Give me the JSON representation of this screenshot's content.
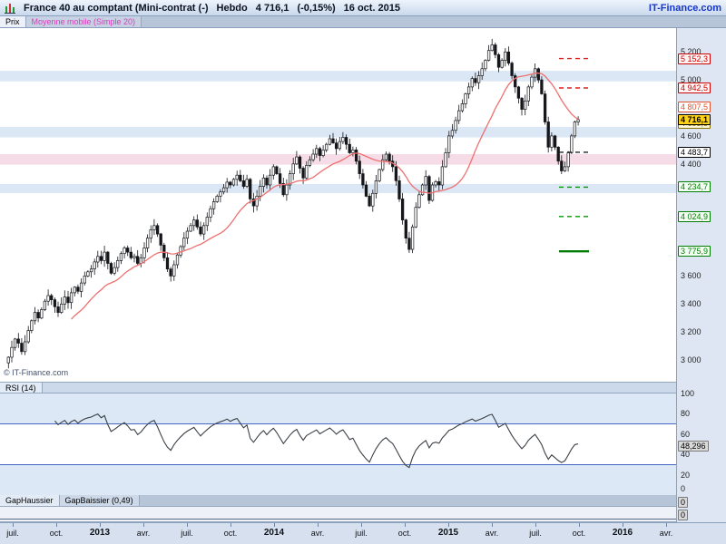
{
  "title_bar": {
    "instrument": "France 40 au comptant (Mini-contrat  (-)",
    "timeframe": "Hebdo",
    "last": "4 716,1",
    "change": "(-0,15%)",
    "date": "16 oct. 2015",
    "brand": "IT-Finance.com"
  },
  "copyright": "© IT-Finance.com",
  "legend": {
    "price_tab": "Prix",
    "ma_tab": "Moyenne mobile (Simple 20)"
  },
  "panels": {
    "rsi": {
      "header": "RSI (14)",
      "axis_labels": [
        "100",
        "80",
        "60",
        "40",
        "20",
        "0"
      ],
      "value": 48.296,
      "value_label": "48,296"
    },
    "gap": {
      "tab1": "GapHaussier",
      "tab2": "GapBaissier (0,49)",
      "axis_labels": [
        "0",
        "0"
      ]
    }
  },
  "time_axis": {
    "labels": [
      "juil.",
      "oct.",
      "2013",
      "avr.",
      "juil.",
      "oct.",
      "2014",
      "avr.",
      "juil.",
      "oct.",
      "2015",
      "avr.",
      "juil.",
      "oct.",
      "2016",
      "avr."
    ],
    "bold": [
      "2013",
      "2014",
      "2015",
      "2016"
    ]
  },
  "chart_data": [
    {
      "type": "candlestick",
      "title": "France 40 au comptant (Mini-contrat) - Hebdo",
      "ylim": [
        2845,
        5370
      ],
      "y_ticks": [
        {
          "label": "5 200",
          "value": 5200
        },
        {
          "label": "5 000",
          "value": 5000
        },
        {
          "label": "4 600",
          "value": 4600
        },
        {
          "label": "4 400",
          "value": 4400
        },
        {
          "label": "3 600",
          "value": 3600
        },
        {
          "label": "3 400",
          "value": 3400
        },
        {
          "label": "3 200",
          "value": 3200
        },
        {
          "label": "3 000",
          "value": 3000
        }
      ],
      "closes": [
        3020,
        3090,
        3150,
        3120,
        3060,
        3130,
        3210,
        3280,
        3340,
        3300,
        3360,
        3420,
        3460,
        3430,
        3380,
        3340,
        3400,
        3450,
        3410,
        3480,
        3520,
        3490,
        3550,
        3600,
        3630,
        3650,
        3700,
        3740,
        3710,
        3770,
        3690,
        3620,
        3660,
        3710,
        3760,
        3800,
        3770,
        3730,
        3740,
        3690,
        3730,
        3800,
        3870,
        3930,
        3960,
        3900,
        3820,
        3730,
        3650,
        3600,
        3680,
        3750,
        3810,
        3870,
        3920,
        3960,
        4000,
        3950,
        3900,
        3960,
        4020,
        4080,
        4130,
        4170,
        4200,
        4230,
        4270,
        4250,
        4290,
        4320,
        4280,
        4240,
        4290,
        4150,
        4100,
        4170,
        4240,
        4300,
        4250,
        4320,
        4380,
        4330,
        4260,
        4180,
        4250,
        4330,
        4400,
        4450,
        4370,
        4300,
        4390,
        4430,
        4470,
        4510,
        4460,
        4500,
        4540,
        4580,
        4550,
        4510,
        4560,
        4590,
        4540,
        4480,
        4500,
        4420,
        4330,
        4250,
        4170,
        4100,
        4190,
        4280,
        4360,
        4430,
        4470,
        4420,
        4380,
        4280,
        4150,
        4000,
        3870,
        3790,
        3950,
        4090,
        4180,
        4250,
        4310,
        4140,
        4250,
        4273,
        4250,
        4380,
        4480,
        4600,
        4640,
        4710,
        4780,
        4830,
        4900,
        4950,
        5010,
        4980,
        5030,
        5080,
        5140,
        5210,
        5250,
        5180,
        5090,
        5140,
        5200,
        5120,
        5030,
        4950,
        4870,
        4790,
        4850,
        4950,
        5020,
        5080,
        5000,
        4900,
        4700,
        4520,
        4600,
        4520,
        4420,
        4350,
        4380,
        4480,
        4600,
        4700,
        4716
      ],
      "last_price": 4716.1,
      "ma_period": 20,
      "ma_color": "#ee7070",
      "levels": [
        {
          "value": 5152.3,
          "label": "5 152,3",
          "text_color": "#cc0000",
          "bg": "#fff4f4",
          "line": "dashed",
          "line_color": "#dd2222"
        },
        {
          "value": 4942.5,
          "label": "4 942,5",
          "text_color": "#cc0000",
          "bg": "#fff4f4",
          "line": "dashed",
          "line_color": "#dd2222"
        },
        {
          "value": 4807.5,
          "label": "4 807,5",
          "text_color": "#e0512e",
          "bg": "#ffffff",
          "line": "none",
          "line_color": "",
          "kind": "ma"
        },
        {
          "value": 4693.5,
          "label": "4 693,5",
          "text_color": "#857200",
          "bg": "#fdf6d8",
          "line": "none",
          "line_color": ""
        },
        {
          "value": 4716.1,
          "label": "4 716,1",
          "text_color": "#000000",
          "bg": "#ffd21a",
          "line": "none",
          "line_color": "",
          "kind": "last"
        },
        {
          "value": 4483.7,
          "label": "4 483,7",
          "text_color": "#000000",
          "bg": "#ffffff",
          "line": "dashed",
          "line_color": "#222222"
        },
        {
          "value": 4234.7,
          "label": "4 234,7",
          "text_color": "#007d00",
          "bg": "#f2fff2",
          "line": "dashed",
          "line_color": "#009900"
        },
        {
          "value": 4024.9,
          "label": "4 024,9",
          "text_color": "#007d00",
          "bg": "#f2fff2",
          "line": "dashed",
          "line_color": "#009900"
        },
        {
          "value": 3775.9,
          "label": "3 775,9",
          "text_color": "#007d00",
          "bg": "#f2fff2",
          "line": "solid",
          "line_color": "#007d00"
        }
      ],
      "zones": [
        {
          "from": 4990,
          "to": 5065,
          "color": "#dbe7f5"
        },
        {
          "from": 4590,
          "to": 4665,
          "color": "#dbe7f5"
        },
        {
          "from": 4395,
          "to": 4470,
          "color": "#f6dce6"
        },
        {
          "from": 4192,
          "to": 4257,
          "color": "#dbe7f5"
        }
      ]
    },
    {
      "type": "line",
      "name": "RSI (14)",
      "period": 14,
      "ylim": [
        0,
        100
      ],
      "hlines": [
        70,
        30
      ],
      "hline_color": "#3355bb",
      "shade_above": 70,
      "shade_below": 30,
      "shade_color": "#dce8f5",
      "last_value": 48.296
    },
    {
      "type": "line",
      "name": "GapHaussier / GapBaissier",
      "values": [
        0
      ],
      "last_value": 0.49
    }
  ]
}
